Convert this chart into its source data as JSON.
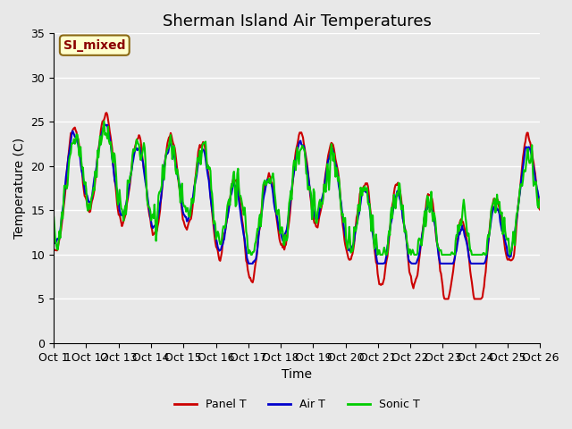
{
  "title": "Sherman Island Air Temperatures",
  "xlabel": "Time",
  "ylabel": "Temperature (C)",
  "legend_label": "SI_mixed",
  "series_labels": [
    "Panel T",
    "Air T",
    "Sonic T"
  ],
  "series_colors": [
    "#cc0000",
    "#0000cc",
    "#00cc00"
  ],
  "line_width": 1.5,
  "ylim": [
    0,
    35
  ],
  "yticks": [
    0,
    5,
    10,
    15,
    20,
    25,
    30,
    35
  ],
  "xtick_positions": [
    0,
    1,
    2,
    3,
    4,
    5,
    6,
    7,
    8,
    9,
    10,
    11,
    12,
    13,
    14,
    15
  ],
  "xtick_labels": [
    "Oct 1",
    "1Oct 12",
    "Oct 13",
    "Oct 14",
    "Oct 15",
    "Oct 16",
    "Oct 17",
    "Oct 18",
    "Oct 19",
    "Oct 20",
    "Oct 21",
    "Oct 22",
    "Oct 23",
    "Oct 24",
    "Oct 25",
    "Oct 26"
  ],
  "xlim": [
    0,
    15
  ],
  "n_days": 15,
  "pts_per_day": 40,
  "background_color": "#e8e8e8",
  "plot_bg_color": "#e8e8e8",
  "grid_color": "#ffffff",
  "title_fontsize": 13,
  "axis_fontsize": 10,
  "tick_fontsize": 9,
  "legend_fontsize": 9
}
